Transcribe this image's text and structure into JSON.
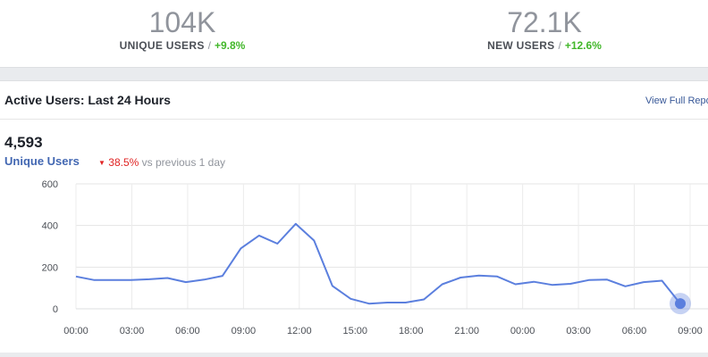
{
  "stats": [
    {
      "value": "104K",
      "label": "UNIQUE USERS",
      "separator": "/",
      "change": "+9.8%"
    },
    {
      "value": "72.1K",
      "label": "NEW USERS",
      "separator": "/",
      "change": "+12.6%"
    }
  ],
  "card": {
    "title": "Active Users: Last 24 Hours",
    "link": "View Full Report"
  },
  "summary": {
    "value": "4,593",
    "metric": "Unique Users",
    "delta_icon": "down-triangle-icon",
    "delta_pct": "38.5%",
    "delta_text": "vs previous 1 day"
  },
  "colors": {
    "line": "#5b7fde",
    "positive": "#42b72a",
    "negative": "#e02424",
    "link": "#385898"
  },
  "chart_data": {
    "type": "line",
    "x_ticks": [
      "00:00",
      "03:00",
      "06:00",
      "09:00",
      "12:00",
      "15:00",
      "18:00",
      "21:00",
      "00:00",
      "03:00",
      "06:00",
      "09:00"
    ],
    "y_ticks": [
      "600",
      "400",
      "200",
      "0"
    ],
    "ylim": [
      0,
      600
    ],
    "grid": true,
    "series": [
      {
        "values": [
          155,
          138,
          138,
          138,
          142,
          148,
          128,
          140,
          158,
          290,
          352,
          313,
          408,
          328,
          110,
          48,
          25,
          30,
          30,
          45,
          118,
          150,
          160,
          155,
          118,
          130,
          115,
          120,
          138,
          140,
          108,
          128,
          135,
          25
        ]
      }
    ]
  }
}
